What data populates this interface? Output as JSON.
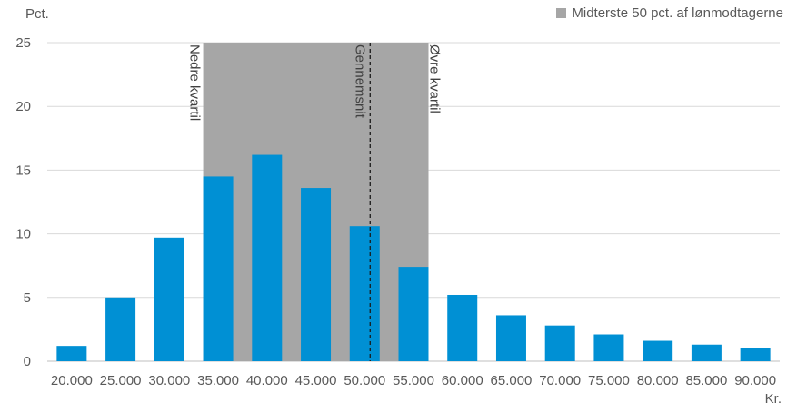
{
  "chart_data": {
    "type": "bar",
    "ylabel": "Pct.",
    "xlabel": "Kr.",
    "ylim": [
      0,
      25
    ],
    "yticks": [
      "0",
      "5",
      "10",
      "15",
      "20",
      "25"
    ],
    "ytick_values": [
      0,
      5,
      10,
      15,
      20,
      25
    ],
    "categories": [
      "20.000",
      "25.000",
      "30.000",
      "35.000",
      "40.000",
      "45.000",
      "50.000",
      "55.000",
      "60.000",
      "65.000",
      "70.000",
      "75.000",
      "80.000",
      "85.000",
      "90.000"
    ],
    "values": [
      1.2,
      5.0,
      9.7,
      14.5,
      16.2,
      13.6,
      10.6,
      7.4,
      5.2,
      3.6,
      2.8,
      2.1,
      1.6,
      1.3,
      1.0
    ],
    "bar_color": "#0090d4",
    "grid": "horizontal",
    "legend_position": "top-right",
    "shaded_band": {
      "label": "Midterste 50 pct. af lønmodtagerne",
      "from_category": "35.000",
      "to_category": "55.000",
      "color": "#a6a6a6"
    },
    "annotations": [
      {
        "label": "Nedre kvartil",
        "category": "35.000"
      },
      {
        "label": "Gennemsnit",
        "category": "50.000"
      },
      {
        "label": "Øvre kvartil",
        "category": "55.000"
      }
    ]
  }
}
